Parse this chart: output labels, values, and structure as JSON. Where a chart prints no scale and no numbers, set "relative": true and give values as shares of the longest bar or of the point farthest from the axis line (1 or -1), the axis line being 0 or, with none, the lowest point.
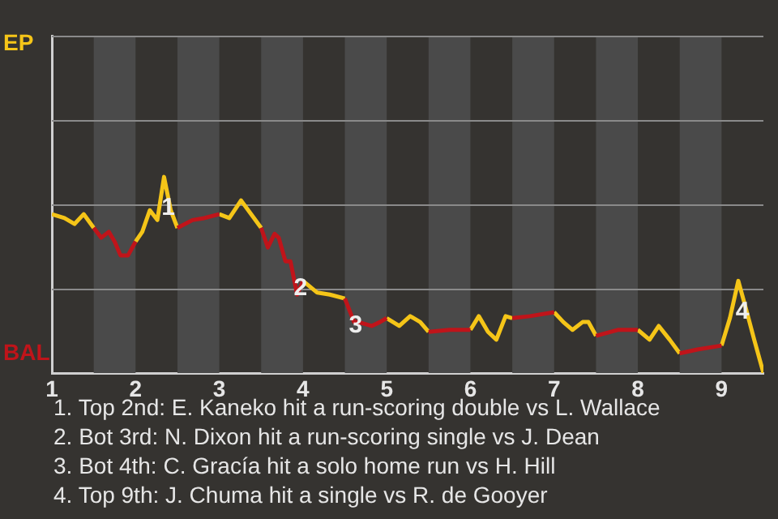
{
  "chart_data": {
    "type": "line",
    "x": [
      1.0,
      1.15,
      1.27,
      1.38,
      1.5,
      1.59,
      1.68,
      1.75,
      1.82,
      1.91,
      2.0,
      2.08,
      2.17,
      2.26,
      2.34,
      2.42,
      2.5,
      2.68,
      2.82,
      3.0,
      3.12,
      3.26,
      3.5,
      3.58,
      3.66,
      3.71,
      3.79,
      3.85,
      3.93,
      4.0,
      4.17,
      4.32,
      4.5,
      4.61,
      4.66,
      4.82,
      4.92,
      5.0,
      5.15,
      5.28,
      5.4,
      5.5,
      5.75,
      6.0,
      6.1,
      6.21,
      6.31,
      6.42,
      6.5,
      6.71,
      7.0,
      7.11,
      7.22,
      7.34,
      7.41,
      7.5,
      7.76,
      8.0,
      8.14,
      8.25,
      8.38,
      8.5,
      8.71,
      9.0,
      9.1,
      9.2,
      9.29,
      9.39,
      9.5
    ],
    "xlim": [
      1,
      9.5
    ],
    "xticks": [
      1,
      2,
      3,
      4,
      5,
      6,
      7,
      8,
      9
    ],
    "relative": true,
    "series": [
      {
        "name": "EP",
        "color": "#f5c518",
        "values": [
          0.81,
          0.79,
          0.76,
          0.81,
          0.74,
          null,
          null,
          null,
          null,
          null,
          0.67,
          0.72,
          0.83,
          0.78,
          1,
          0.83,
          0.74,
          null,
          null,
          0.81,
          0.79,
          0.88,
          0.74,
          null,
          null,
          null,
          null,
          null,
          null,
          0.47,
          0.41,
          0.4,
          0.38,
          null,
          null,
          null,
          null,
          0.28,
          0.24,
          0.29,
          0.26,
          0.21,
          null,
          0.22,
          0.29,
          0.21,
          0.17,
          0.29,
          0.28,
          null,
          0.31,
          0.26,
          0.22,
          0.26,
          0.26,
          0.19,
          null,
          0.22,
          0.17,
          0.24,
          0.17,
          0.1,
          null,
          0.14,
          0.28,
          0.47,
          0.33,
          0.17,
          0
        ]
      },
      {
        "name": "BAL",
        "color": "#c0141a",
        "values": [
          null,
          null,
          null,
          null,
          0.74,
          0.69,
          0.72,
          0.67,
          0.6,
          0.6,
          0.67,
          null,
          null,
          null,
          null,
          null,
          0.74,
          0.78,
          0.79,
          0.81,
          null,
          null,
          0.74,
          0.64,
          0.71,
          0.69,
          0.57,
          0.57,
          0.4,
          0.47,
          null,
          null,
          0.38,
          0.26,
          0.26,
          0.24,
          0.26,
          0.28,
          null,
          null,
          null,
          0.21,
          0.22,
          0.22,
          null,
          null,
          null,
          null,
          0.28,
          0.29,
          0.31,
          null,
          null,
          null,
          null,
          0.19,
          0.22,
          0.22,
          null,
          null,
          null,
          0.1,
          0.12,
          0.14,
          null,
          null,
          null,
          null,
          null
        ]
      }
    ],
    "bands": [
      {
        "axis": "x",
        "from": 1.5,
        "to": 2,
        "color": "#4a4a4a"
      },
      {
        "axis": "x",
        "from": 2.5,
        "to": 3,
        "color": "#4a4a4a"
      },
      {
        "axis": "x",
        "from": 3.5,
        "to": 4,
        "color": "#4a4a4a"
      },
      {
        "axis": "x",
        "from": 4.5,
        "to": 5,
        "color": "#4a4a4a"
      },
      {
        "axis": "x",
        "from": 5.5,
        "to": 6,
        "color": "#4a4a4a"
      },
      {
        "axis": "x",
        "from": 6.5,
        "to": 7,
        "color": "#4a4a4a"
      },
      {
        "axis": "x",
        "from": 7.5,
        "to": 8,
        "color": "#4a4a4a"
      },
      {
        "axis": "x",
        "from": 8.5,
        "to": 9,
        "color": "#4a4a4a"
      }
    ],
    "ref_lines": [
      {
        "axis": "y",
        "value": 0.43,
        "color": "#8a8a8a"
      },
      {
        "axis": "y",
        "value": 0.86,
        "color": "#8a8a8a"
      },
      {
        "axis": "y",
        "value": 1.29,
        "color": "#8a8a8a"
      },
      {
        "axis": "y",
        "value": 1.72,
        "color": "#8a8a8a"
      }
    ],
    "annotations": [
      {
        "text": "1",
        "x": 2.39,
        "y": 0.84
      },
      {
        "text": "2",
        "x": 3.97,
        "y": 0.43
      },
      {
        "text": "3",
        "x": 4.63,
        "y": 0.24
      },
      {
        "text": "4",
        "x": 9.25,
        "y": 0.31
      },
      "1. Top 2nd: E. Kaneko hit a run-scoring double vs L. Wallace",
      "2. Bot 3rd: N. Dixon hit a run-scoring single vs J. Dean",
      "3. Bot 4th: C. Gracía hit a solo home run vs H. Hill",
      "4. Top 9th: J. Chuma hit a single vs R. de Gooyer"
    ],
    "legend": "left"
  }
}
